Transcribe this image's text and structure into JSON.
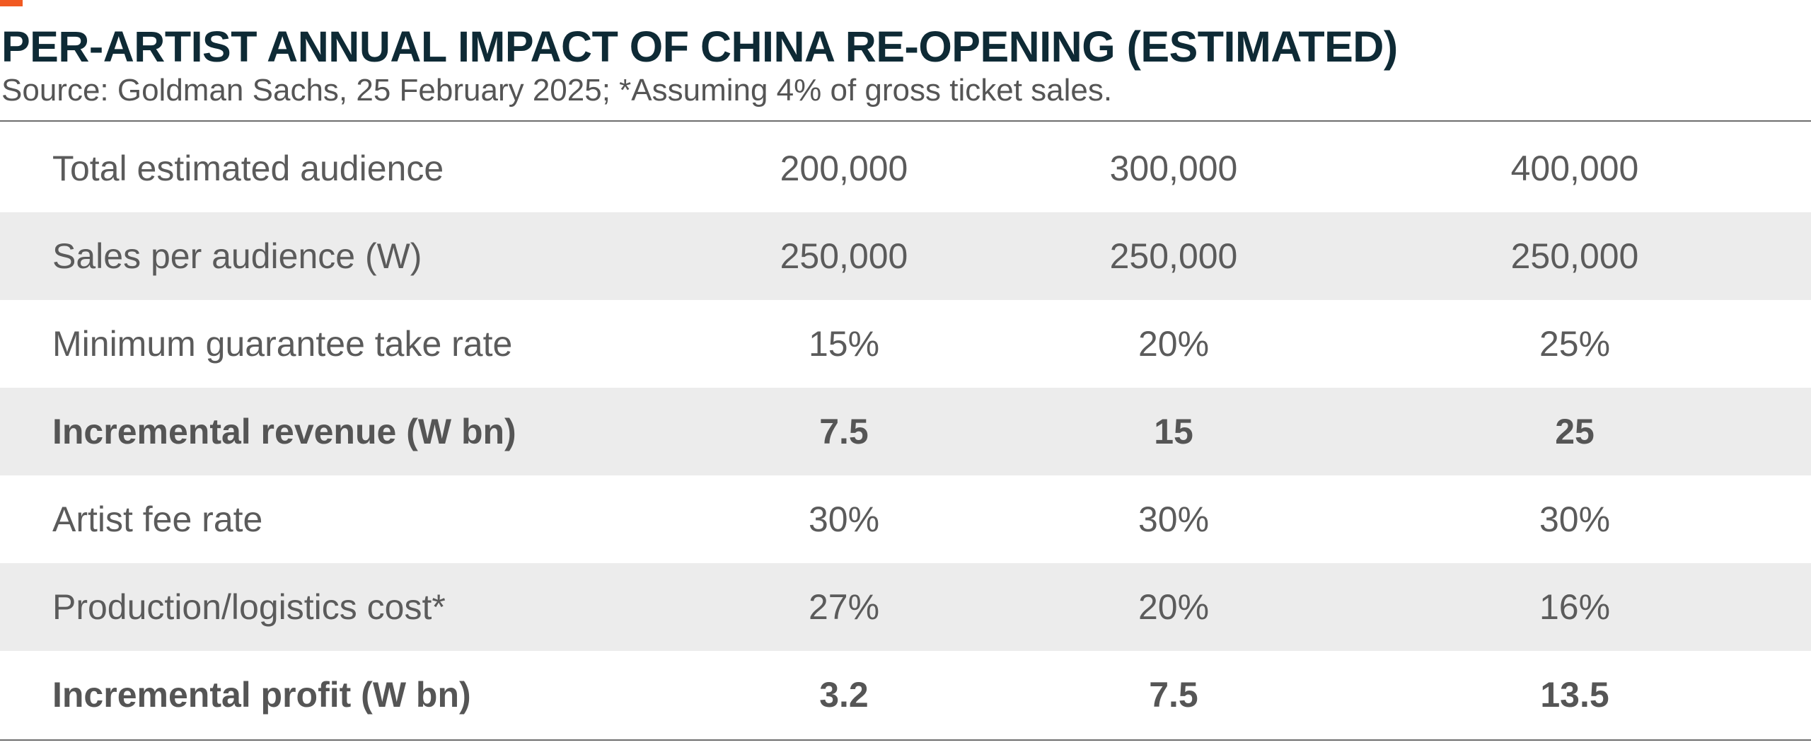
{
  "colors": {
    "accent": "#f15a22",
    "title": "#0e2a35",
    "text": "#5b5b5b",
    "row_shade": "#ececec",
    "rule": "#6e6e6e"
  },
  "chart_data": {
    "type": "table",
    "title": "PER-ARTIST ANNUAL IMPACT OF CHINA RE-OPENING (ESTIMATED)",
    "subtitle": "Source: Goldman Sachs, 25 February 2025; *Assuming 4% of gross ticket sales.",
    "rows": [
      {
        "label": "Total estimated audience",
        "values": [
          "200,000",
          "300,000",
          "400,000"
        ],
        "bold": false
      },
      {
        "label": "Sales per audience (W)",
        "values": [
          "250,000",
          "250,000",
          "250,000"
        ],
        "bold": false
      },
      {
        "label": "Minimum guarantee take rate",
        "values": [
          "15%",
          "20%",
          "25%"
        ],
        "bold": false
      },
      {
        "label": "Incremental revenue (W bn)",
        "values": [
          "7.5",
          "15",
          "25"
        ],
        "bold": true
      },
      {
        "label": "Artist fee rate",
        "values": [
          "30%",
          "30%",
          "30%"
        ],
        "bold": false
      },
      {
        "label": "Production/logistics cost*",
        "values": [
          "27%",
          "20%",
          "16%"
        ],
        "bold": false
      },
      {
        "label": "Incremental profit (W bn)",
        "values": [
          "3.2",
          "7.5",
          "13.5"
        ],
        "bold": true
      }
    ]
  }
}
